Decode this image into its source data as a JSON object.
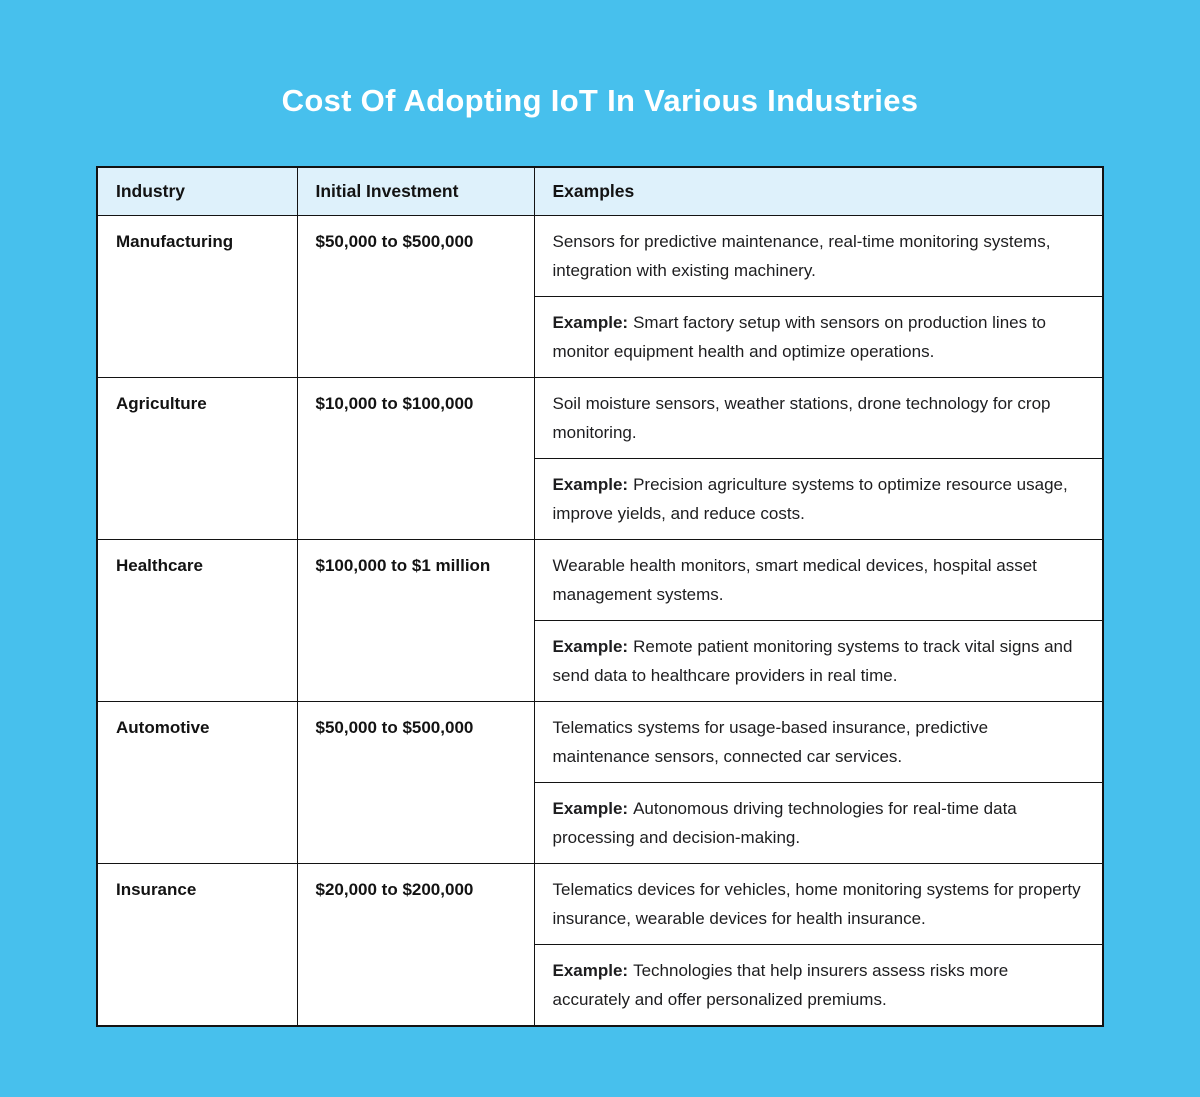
{
  "page": {
    "colors": {
      "background": "#47c0ed",
      "header_bg": "#def1fb",
      "cell_bg": "#ffffff",
      "border": "#131313",
      "title_text": "#ffffff",
      "body_text": "#1d1d1f"
    }
  },
  "chart_data": {
    "type": "table",
    "title": "Cost Of Adopting IoT In Various Industries",
    "columns": [
      "Industry",
      "Initial Investment",
      "Examples"
    ],
    "example_label": "Example:",
    "rows": [
      {
        "industry": "Manufacturing",
        "investment": "$50,000 to $500,000",
        "use_cases": "Sensors for predictive maintenance, real-time monitoring systems, integration with existing machinery.",
        "example": "Smart factory setup with sensors on production lines to monitor equipment health and optimize operations."
      },
      {
        "industry": "Agriculture",
        "investment": "$10,000 to $100,000",
        "use_cases": "Soil moisture sensors, weather stations, drone technology for crop monitoring.",
        "example": "Precision agriculture systems to optimize resource usage, improve yields, and reduce costs."
      },
      {
        "industry": "Healthcare",
        "investment": "$100,000 to $1 million",
        "use_cases": "Wearable health monitors, smart medical devices, hospital asset management systems.",
        "example": "Remote patient monitoring systems to track vital signs and send data to healthcare providers in real time."
      },
      {
        "industry": "Automotive",
        "investment": "$50,000 to $500,000",
        "use_cases": "Telematics systems for usage-based insurance, predictive maintenance sensors, connected car services.",
        "example": "Autonomous driving technologies for real-time data processing and decision-making."
      },
      {
        "industry": "Insurance",
        "investment": "$20,000 to $200,000",
        "use_cases": "Telematics devices for vehicles, home monitoring systems for property insurance, wearable devices for health insurance.",
        "example": "Technologies that help insurers assess risks more accurately and offer personalized premiums."
      }
    ]
  }
}
